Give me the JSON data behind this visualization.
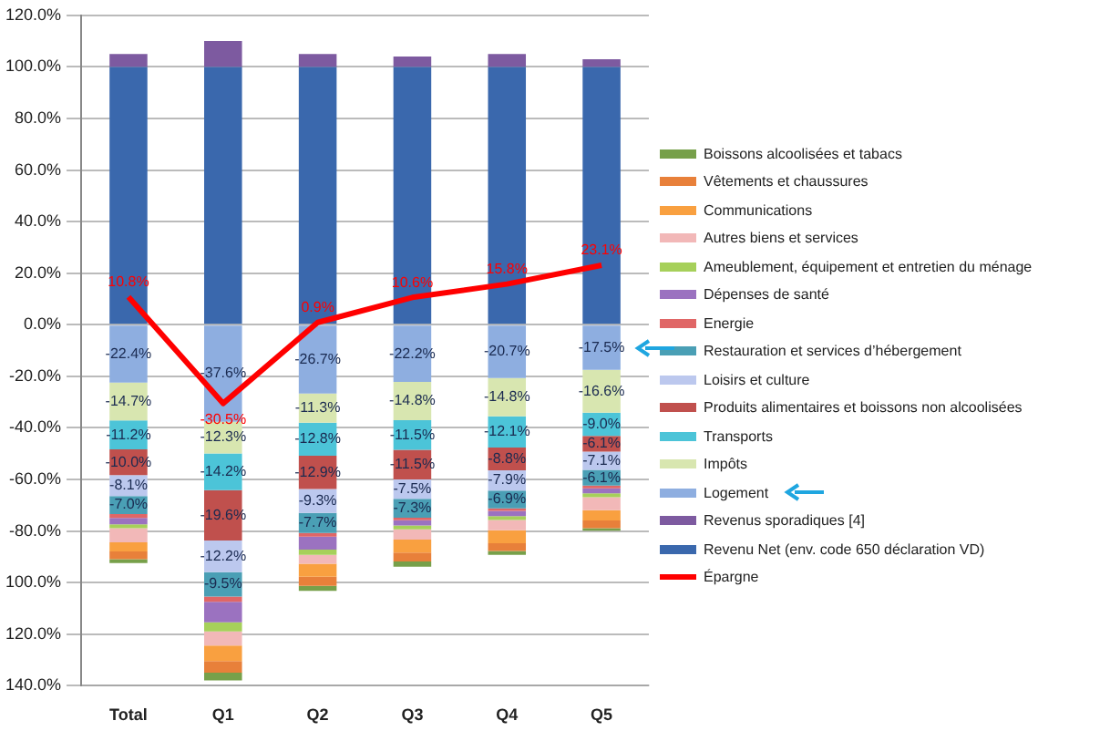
{
  "chart_data": {
    "type": "bar",
    "stacked": true,
    "categories": [
      "Total",
      "Q1",
      "Q2",
      "Q3",
      "Q4",
      "Q5"
    ],
    "ylim": [
      -140,
      120
    ],
    "yticks": [
      {
        "value": -140,
        "label": "140.0%"
      },
      {
        "value": -120,
        "label": "120.0%"
      },
      {
        "value": -100,
        "label": "100.0%"
      },
      {
        "value": -80,
        "label": "-80.0%"
      },
      {
        "value": -60,
        "label": "-60.0%"
      },
      {
        "value": -40,
        "label": "-40.0%"
      },
      {
        "value": -20,
        "label": "-20.0%"
      },
      {
        "value": 0,
        "label": "0.0%"
      },
      {
        "value": 20,
        "label": "20.0%"
      },
      {
        "value": 40,
        "label": "40.0%"
      },
      {
        "value": 60,
        "label": "60.0%"
      },
      {
        "value": 80,
        "label": "80.0%"
      },
      {
        "value": 100,
        "label": "100.0%"
      },
      {
        "value": 120,
        "label": "120.0%"
      }
    ],
    "grid": "y",
    "legend": "right",
    "series": [
      {
        "name": "Revenu Net (env. code 650 déclaration VD)",
        "color": "#3a68ad",
        "values": [
          100,
          100,
          100,
          100,
          100,
          100
        ]
      },
      {
        "name": "Revenus sporadiques [4]",
        "color": "#7d5aa0",
        "values": [
          5,
          10,
          5,
          4,
          5,
          3
        ]
      },
      {
        "name": "Logement",
        "color": "#8eaee0",
        "values": [
          -22.4,
          -37.6,
          -26.7,
          -22.2,
          -20.7,
          -17.5
        ],
        "value_labels": [
          "-22.4%",
          "-37.6%",
          "-26.7%",
          "-22.2%",
          "-20.7%",
          "-17.5%"
        ]
      },
      {
        "name": "Impôts",
        "color": "#d8e6b0",
        "values": [
          -14.7,
          -12.3,
          -11.3,
          -14.8,
          -14.8,
          -16.6
        ],
        "value_labels": [
          "-14.7%",
          "-12.3%",
          "-11.3%",
          "-14.8%",
          "-14.8%",
          "-16.6%"
        ]
      },
      {
        "name": "Transports",
        "color": "#4cc4d8",
        "values": [
          -11.2,
          -14.2,
          -12.8,
          -11.5,
          -12.1,
          -9.0
        ],
        "value_labels": [
          "-11.2%",
          "-14.2%",
          "-12.8%",
          "-11.5%",
          "-12.1%",
          "-9.0%"
        ]
      },
      {
        "name": "Produits alimentaires et boissons non alcoolisées",
        "color": "#c0504d",
        "values": [
          -10.0,
          -19.6,
          -12.9,
          -11.5,
          -8.8,
          -6.1
        ],
        "value_labels": [
          "-10.0%",
          "-19.6%",
          "-12.9%",
          "-11.5%",
          "-8.8%",
          "-6.1%"
        ]
      },
      {
        "name": "Loisirs et culture",
        "color": "#bcc8ee",
        "values": [
          -8.1,
          -12.2,
          -9.3,
          -7.5,
          -7.9,
          -7.1
        ],
        "value_labels": [
          "-8.1%",
          "-12.2%",
          "-9.3%",
          "-7.5%",
          "-7.9%",
          "-7.1%"
        ]
      },
      {
        "name": "Restauration et services d’hébergement",
        "color": "#4a9fb5",
        "values": [
          -7.0,
          -9.5,
          -7.7,
          -7.3,
          -6.9,
          -6.1
        ],
        "value_labels": [
          "-7.0%",
          "-9.5%",
          "-7.7%",
          "-7.3%",
          "-6.9%",
          "-6.1%"
        ]
      },
      {
        "name": "Energie",
        "color": "#e06666",
        "values": [
          -1.5,
          -2,
          -1.5,
          -1,
          -1,
          -1
        ]
      },
      {
        "name": "Dépenses de santé",
        "color": "#9b72c0",
        "values": [
          -2.5,
          -8,
          -5,
          -2,
          -2,
          -2
        ]
      },
      {
        "name": "Ameublement, équipement et entretien du ménage",
        "color": "#a6d05a",
        "values": [
          -1.5,
          -3.5,
          -2,
          -1.5,
          -1.5,
          -1.5
        ]
      },
      {
        "name": "Autres biens et services",
        "color": "#f2b8b8",
        "values": [
          -5.5,
          -5.5,
          -3.5,
          -4,
          -4,
          -5
        ]
      },
      {
        "name": "Communications",
        "color": "#f9a040",
        "values": [
          -3.5,
          -6,
          -5,
          -5,
          -5,
          -4
        ]
      },
      {
        "name": "Vêtements et chaussures",
        "color": "#e8803a",
        "values": [
          -3,
          -4.5,
          -3.5,
          -3.5,
          -3,
          -3
        ]
      },
      {
        "name": "Boissons alcoolisées et tabacs",
        "color": "#77a04a",
        "values": [
          -1.5,
          -3,
          -2,
          -2,
          -1.5,
          -1
        ]
      },
      {
        "name": "Épargne",
        "type": "line",
        "color": "#ff0000",
        "values": [
          10.8,
          -30.5,
          0.9,
          10.6,
          15.8,
          23.1
        ],
        "value_labels": [
          "10.8%",
          "-30.5%",
          "0.9%",
          "10.6%",
          "15.8%",
          "23.1%"
        ]
      }
    ]
  }
}
